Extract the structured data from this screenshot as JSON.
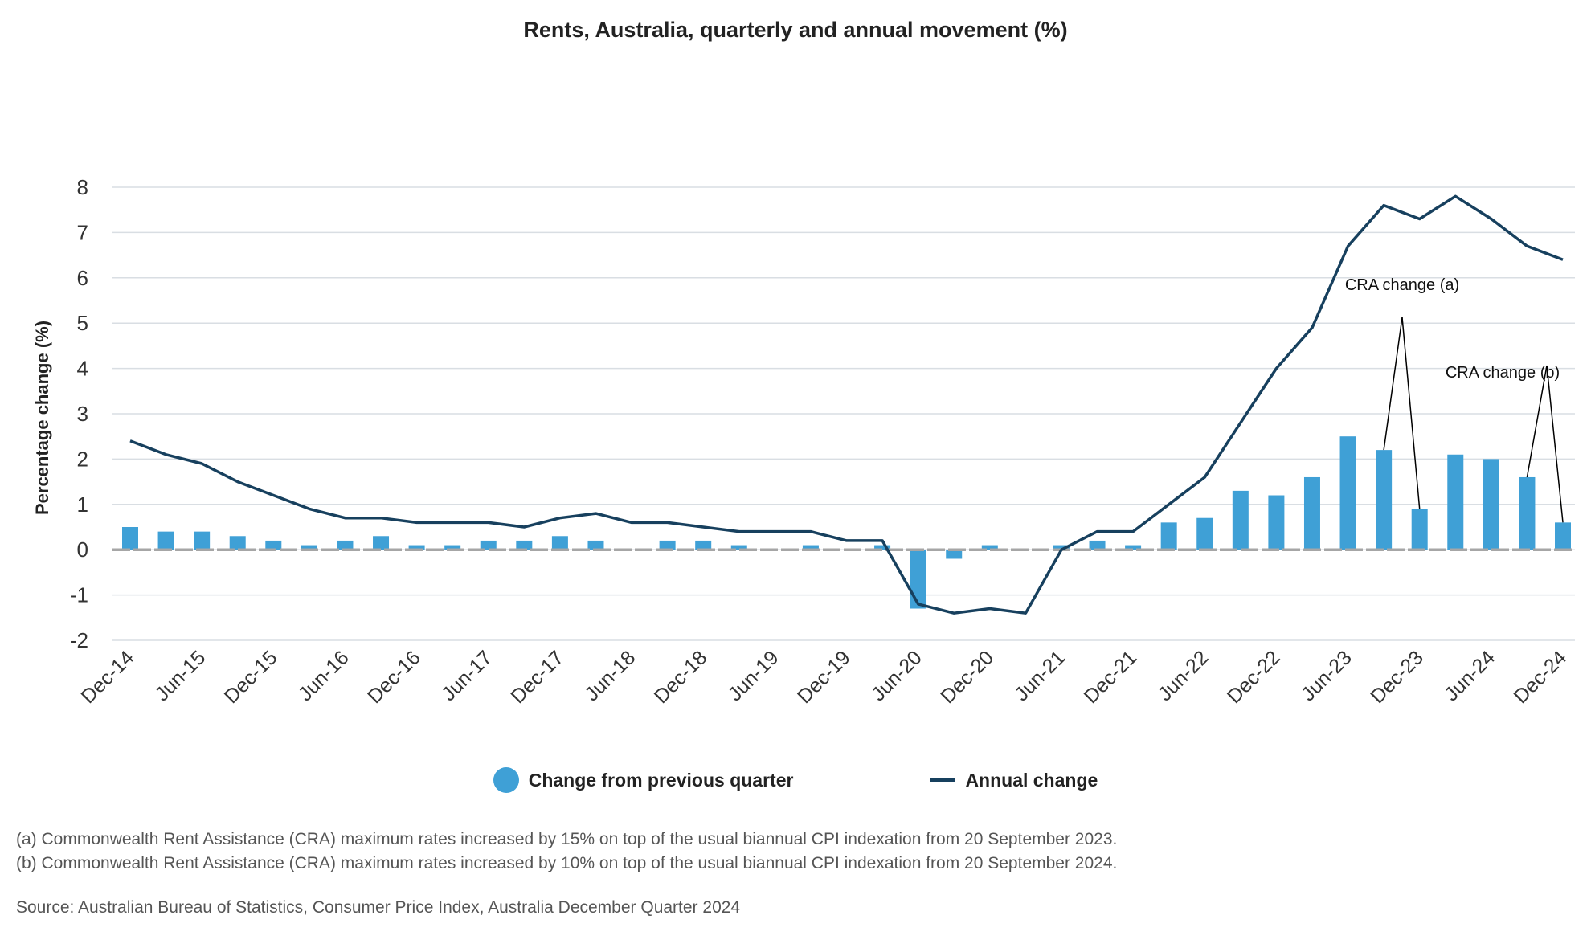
{
  "chart_data": {
    "type": "bar",
    "title": "Rents, Australia, quarterly and annual movement (%)",
    "ylabel": "Percentage change (%)",
    "xlabel": "",
    "ylim": [
      -2,
      8
    ],
    "yticks": [
      -2,
      -1,
      0,
      1,
      2,
      3,
      4,
      5,
      6,
      7,
      8
    ],
    "grid": true,
    "legend_position": "bottom",
    "x_tick_labels": [
      "Dec-14",
      "Jun-15",
      "Dec-15",
      "Jun-16",
      "Dec-16",
      "Jun-17",
      "Dec-17",
      "Jun-18",
      "Dec-18",
      "Jun-19",
      "Dec-19",
      "Jun-20",
      "Dec-20",
      "Jun-21",
      "Dec-21",
      "Jun-22",
      "Dec-22",
      "Jun-23",
      "Dec-23",
      "Jun-24",
      "Dec-24"
    ],
    "categories": [
      "Dec-14",
      "Mar-15",
      "Jun-15",
      "Sep-15",
      "Dec-15",
      "Mar-16",
      "Jun-16",
      "Sep-16",
      "Dec-16",
      "Mar-17",
      "Jun-17",
      "Sep-17",
      "Dec-17",
      "Mar-18",
      "Jun-18",
      "Sep-18",
      "Dec-18",
      "Mar-19",
      "Jun-19",
      "Sep-19",
      "Dec-19",
      "Mar-20",
      "Jun-20",
      "Sep-20",
      "Dec-20",
      "Mar-21",
      "Jun-21",
      "Sep-21",
      "Dec-21",
      "Mar-22",
      "Jun-22",
      "Sep-22",
      "Dec-22",
      "Mar-23",
      "Jun-23",
      "Sep-23",
      "Dec-23",
      "Mar-24",
      "Jun-24",
      "Sep-24",
      "Dec-24"
    ],
    "series": [
      {
        "name": "Change from previous quarter",
        "type": "bar",
        "color": "#3fa0d6",
        "values": [
          0.5,
          0.4,
          0.4,
          0.3,
          0.2,
          0.1,
          0.2,
          0.3,
          0.1,
          0.1,
          0.2,
          0.2,
          0.3,
          0.2,
          0.0,
          0.2,
          0.2,
          0.1,
          0.0,
          0.1,
          0.0,
          0.1,
          -1.3,
          -0.2,
          0.1,
          0.0,
          0.1,
          0.2,
          0.1,
          0.6,
          0.7,
          1.3,
          1.2,
          1.6,
          2.5,
          2.2,
          0.9,
          2.1,
          2.0,
          1.6,
          0.6
        ]
      },
      {
        "name": "Annual change",
        "type": "line",
        "color": "#17405e",
        "values": [
          2.4,
          2.1,
          1.9,
          1.5,
          1.2,
          0.9,
          0.7,
          0.7,
          0.6,
          0.6,
          0.6,
          0.5,
          0.7,
          0.8,
          0.6,
          0.6,
          0.5,
          0.4,
          0.4,
          0.4,
          0.2,
          0.2,
          -1.2,
          -1.4,
          -1.3,
          -1.4,
          0.0,
          0.4,
          0.4,
          1.0,
          1.6,
          2.8,
          4.0,
          4.9,
          6.7,
          7.6,
          7.3,
          7.8,
          7.3,
          6.7,
          6.4
        ]
      }
    ],
    "annotations": [
      {
        "text": "CRA change (a)",
        "points_to": [
          "Sep-23",
          "Dec-23"
        ]
      },
      {
        "text": "CRA change (b)",
        "points_to": [
          "Sep-24",
          "Dec-24"
        ]
      }
    ]
  },
  "legend": {
    "bar_label": "Change from previous quarter",
    "line_label": "Annual change"
  },
  "footnotes": {
    "a": "(a) Commonwealth Rent Assistance (CRA) maximum rates increased by 15% on top of the usual biannual CPI indexation from 20 September 2023.",
    "b": "(b) Commonwealth Rent Assistance (CRA) maximum rates increased by 10% on top of the usual biannual CPI indexation from 20 September 2024."
  },
  "source": "Source: Australian Bureau of Statistics, Consumer Price Index, Australia December Quarter 2024",
  "colors": {
    "bar": "#3fa0d6",
    "line": "#17405e",
    "zero_line": "#a6a6a6",
    "grid": "#d9dee3"
  }
}
